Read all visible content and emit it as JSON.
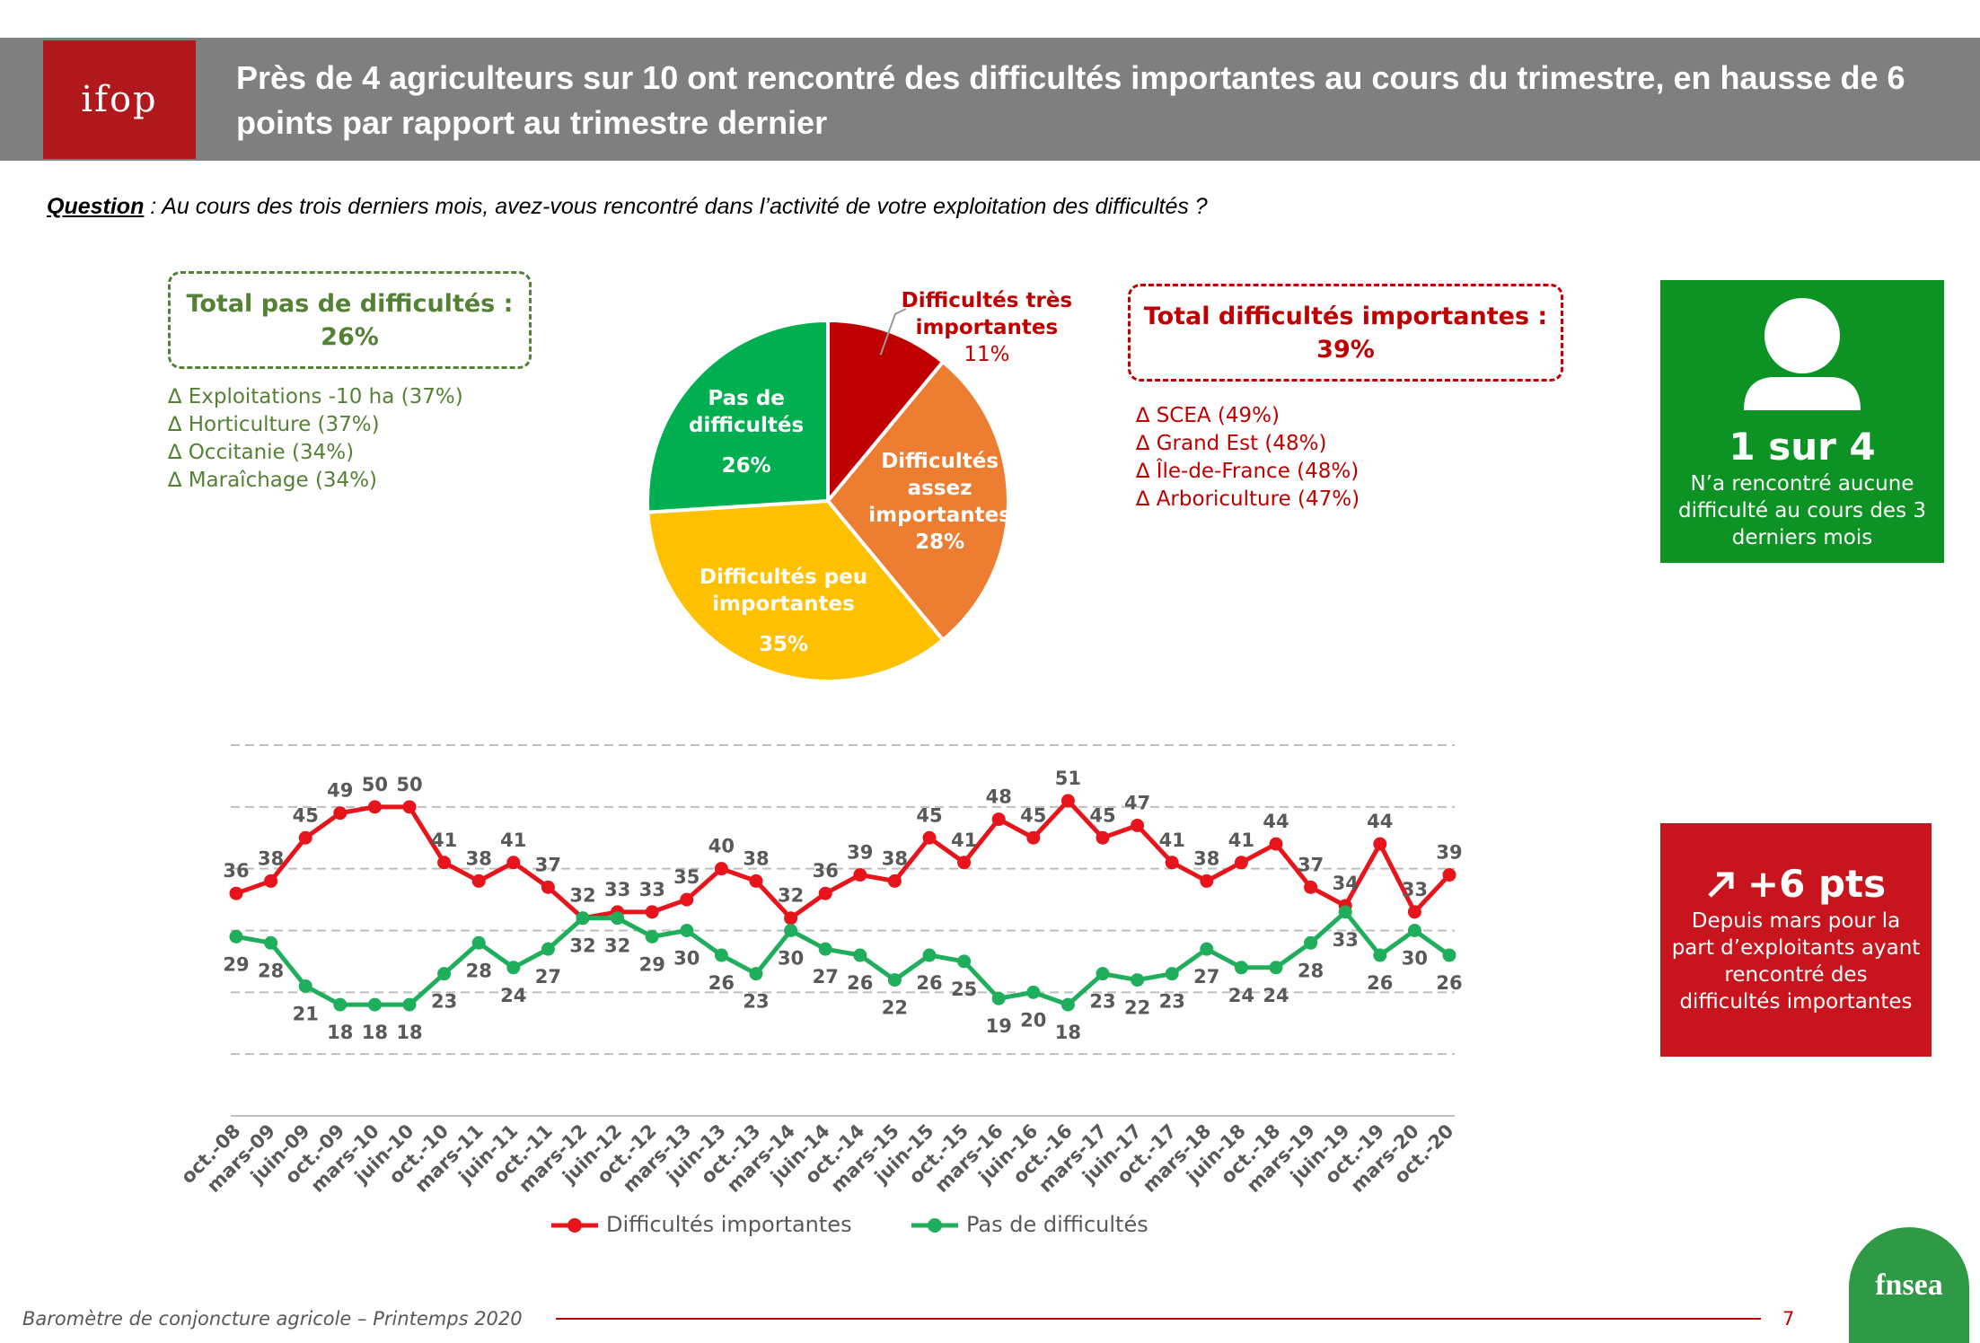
{
  "header": {
    "logo": "ifop",
    "title": "Près de 4 agriculteurs sur 10 ont rencontré des difficultés importantes au cours du trimestre, en hausse de 6 points par rapport au trimestre dernier"
  },
  "question": {
    "label": "Question",
    "text": " : Au cours des trois derniers mois, avez-vous rencontré dans l’activité de votre exploitation des difficultés ?"
  },
  "no_difficulty_box": {
    "title": "Total pas de difficultés :",
    "value": "26%",
    "items": [
      "∆ Exploitations -10 ha (37%)",
      "∆ Horticulture (37%)",
      "∆ Occitanie (34%)",
      "∆ Maraîchage (34%)"
    ]
  },
  "difficulty_box": {
    "title": "Total difficultés importantes :",
    "value": "39%",
    "items": [
      "∆ SCEA (49%)",
      "∆ Grand Est (48%)",
      "∆ Île-de-France (48%)",
      "∆ Arboriculture (47%)"
    ]
  },
  "green_card": {
    "headline": "1 sur 4",
    "text": "N’a rencontré aucune difficulté au cours des 3 derniers mois"
  },
  "red_card": {
    "headline": "+6 pts",
    "text": "Depuis mars pour la part d’exploitants ayant rencontré des difficultés importantes"
  },
  "chart_data": [
    {
      "type": "pie",
      "categories": [
        "Difficultés très importantes",
        "Difficultés assez importantes",
        "Difficultés peu importantes",
        "Pas de difficultés"
      ],
      "values": [
        11,
        28,
        35,
        26
      ],
      "value_labels": [
        "11%",
        "28%",
        "35%",
        "26%"
      ],
      "colors": [
        "#c00000",
        "#ed7d31",
        "#ffc000",
        "#00b050"
      ]
    },
    {
      "type": "line",
      "categories": [
        "oct.-08",
        "mars-09",
        "juin-09",
        "oct.-09",
        "mars-10",
        "juin-10",
        "oct.-10",
        "mars-11",
        "juin-11",
        "oct.-11",
        "mars-12",
        "juin-12",
        "oct.-12",
        "mars-13",
        "juin-13",
        "oct.-13",
        "mars-14",
        "juin-14",
        "oct.-14",
        "mars-15",
        "juin-15",
        "oct.-15",
        "mars-16",
        "juin-16",
        "oct.-16",
        "mars-17",
        "juin-17",
        "oct.-17",
        "mars-18",
        "juin-18",
        "oct.-18",
        "mars-19",
        "juin-19",
        "oct.-19",
        "mars-20",
        "oct.-20"
      ],
      "series": [
        {
          "name": "Difficultés importantes",
          "color": "#e8141c",
          "values": [
            36,
            38,
            45,
            49,
            50,
            50,
            41,
            38,
            41,
            37,
            32,
            33,
            33,
            35,
            40,
            38,
            32,
            36,
            39,
            38,
            45,
            41,
            48,
            45,
            51,
            45,
            47,
            41,
            38,
            41,
            44,
            37,
            34,
            44,
            33,
            39
          ]
        },
        {
          "name": "Pas de difficultés",
          "color": "#1fae5b",
          "values": [
            29,
            28,
            21,
            18,
            18,
            18,
            23,
            28,
            24,
            27,
            32,
            32,
            29,
            30,
            26,
            23,
            30,
            27,
            26,
            22,
            26,
            25,
            19,
            20,
            18,
            23,
            22,
            23,
            27,
            24,
            24,
            28,
            33,
            26,
            30,
            26
          ]
        }
      ],
      "ylim": [
        0,
        60
      ],
      "yticks": [
        10,
        20,
        30,
        40,
        50,
        60
      ],
      "grid": true
    }
  ],
  "footer": {
    "text": "Baromètre de conjoncture agricole – Printemps 2020",
    "page": "7",
    "logo": "fnsea"
  }
}
